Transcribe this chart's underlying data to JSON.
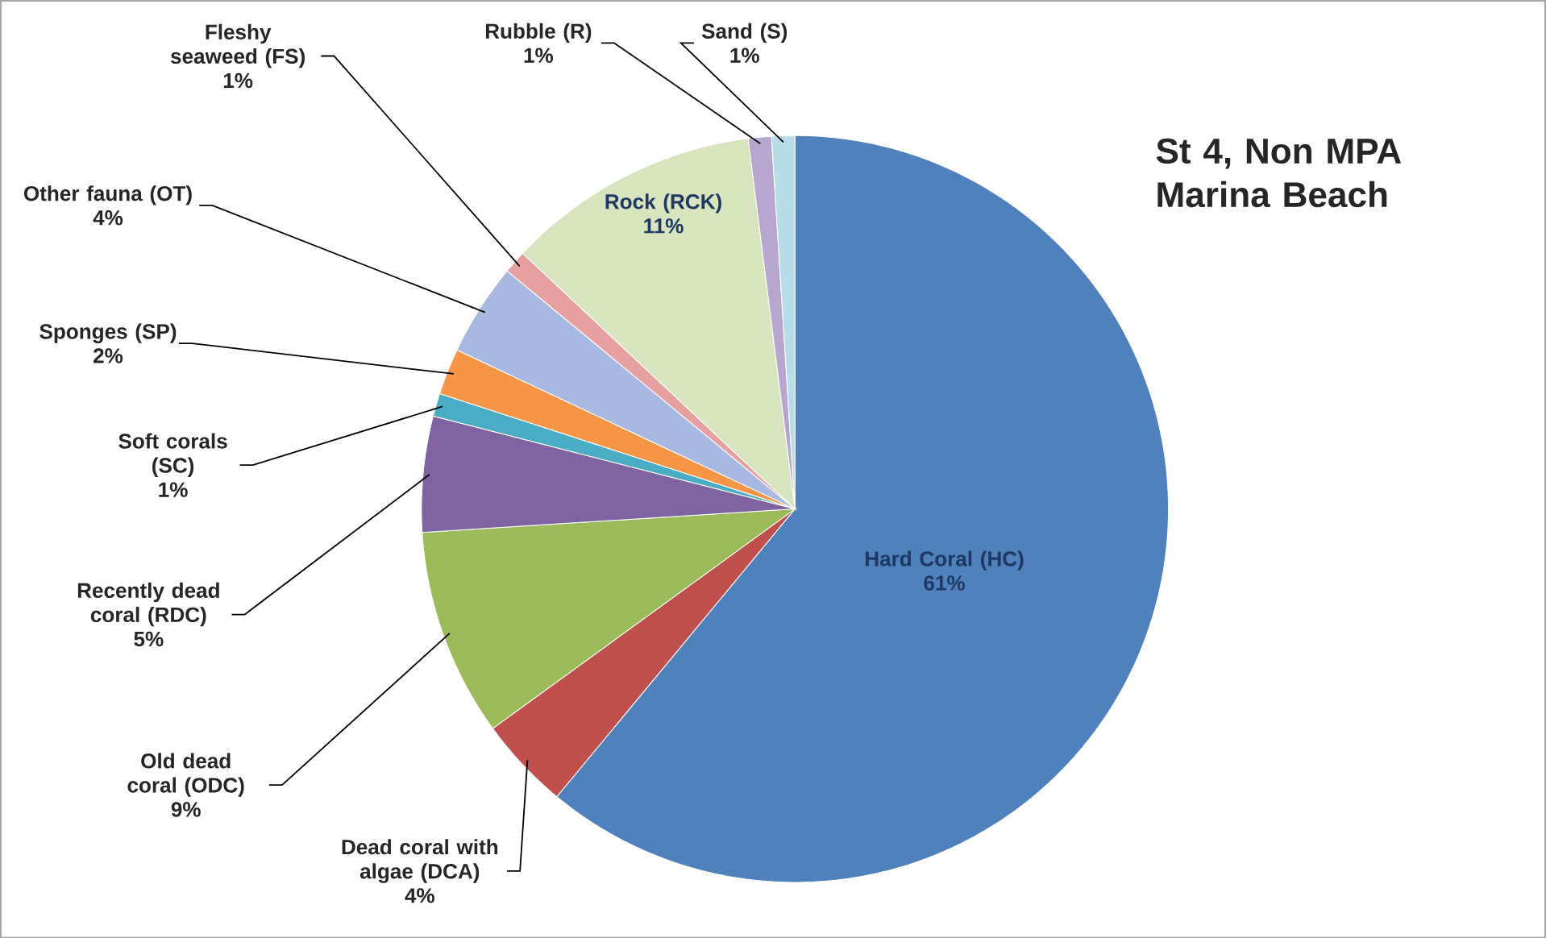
{
  "chart_data": {
    "type": "pie",
    "title": "St 4, Non MPA Marina Beach",
    "categories": [
      "Hard Coral (HC)",
      "Dead coral with algae (DCA)",
      "Old dead coral (ODC)",
      "Recently dead coral (RDC)",
      "Soft corals (SC)",
      "Sponges (SP)",
      "Other fauna (OT)",
      "Fleshy seaweed (FS)",
      "Rock (RCK)",
      "Rubble (R)",
      "Sand (S)"
    ],
    "values": [
      61,
      4,
      9,
      5,
      1,
      2,
      4,
      1,
      11,
      1,
      1
    ],
    "value_labels": [
      "61%",
      "4%",
      "9%",
      "5%",
      "1%",
      "2%",
      "4%",
      "1%",
      "11%",
      "1%",
      "1%"
    ],
    "colors": [
      "#4f81bd",
      "#c0504d",
      "#9bbb59",
      "#8064a2",
      "#4bacc6",
      "#f79646",
      "#a7b9e0",
      "#e6a0a0",
      "#d7e4bd",
      "#b7a7cf",
      "#b7dee8"
    ]
  }
}
